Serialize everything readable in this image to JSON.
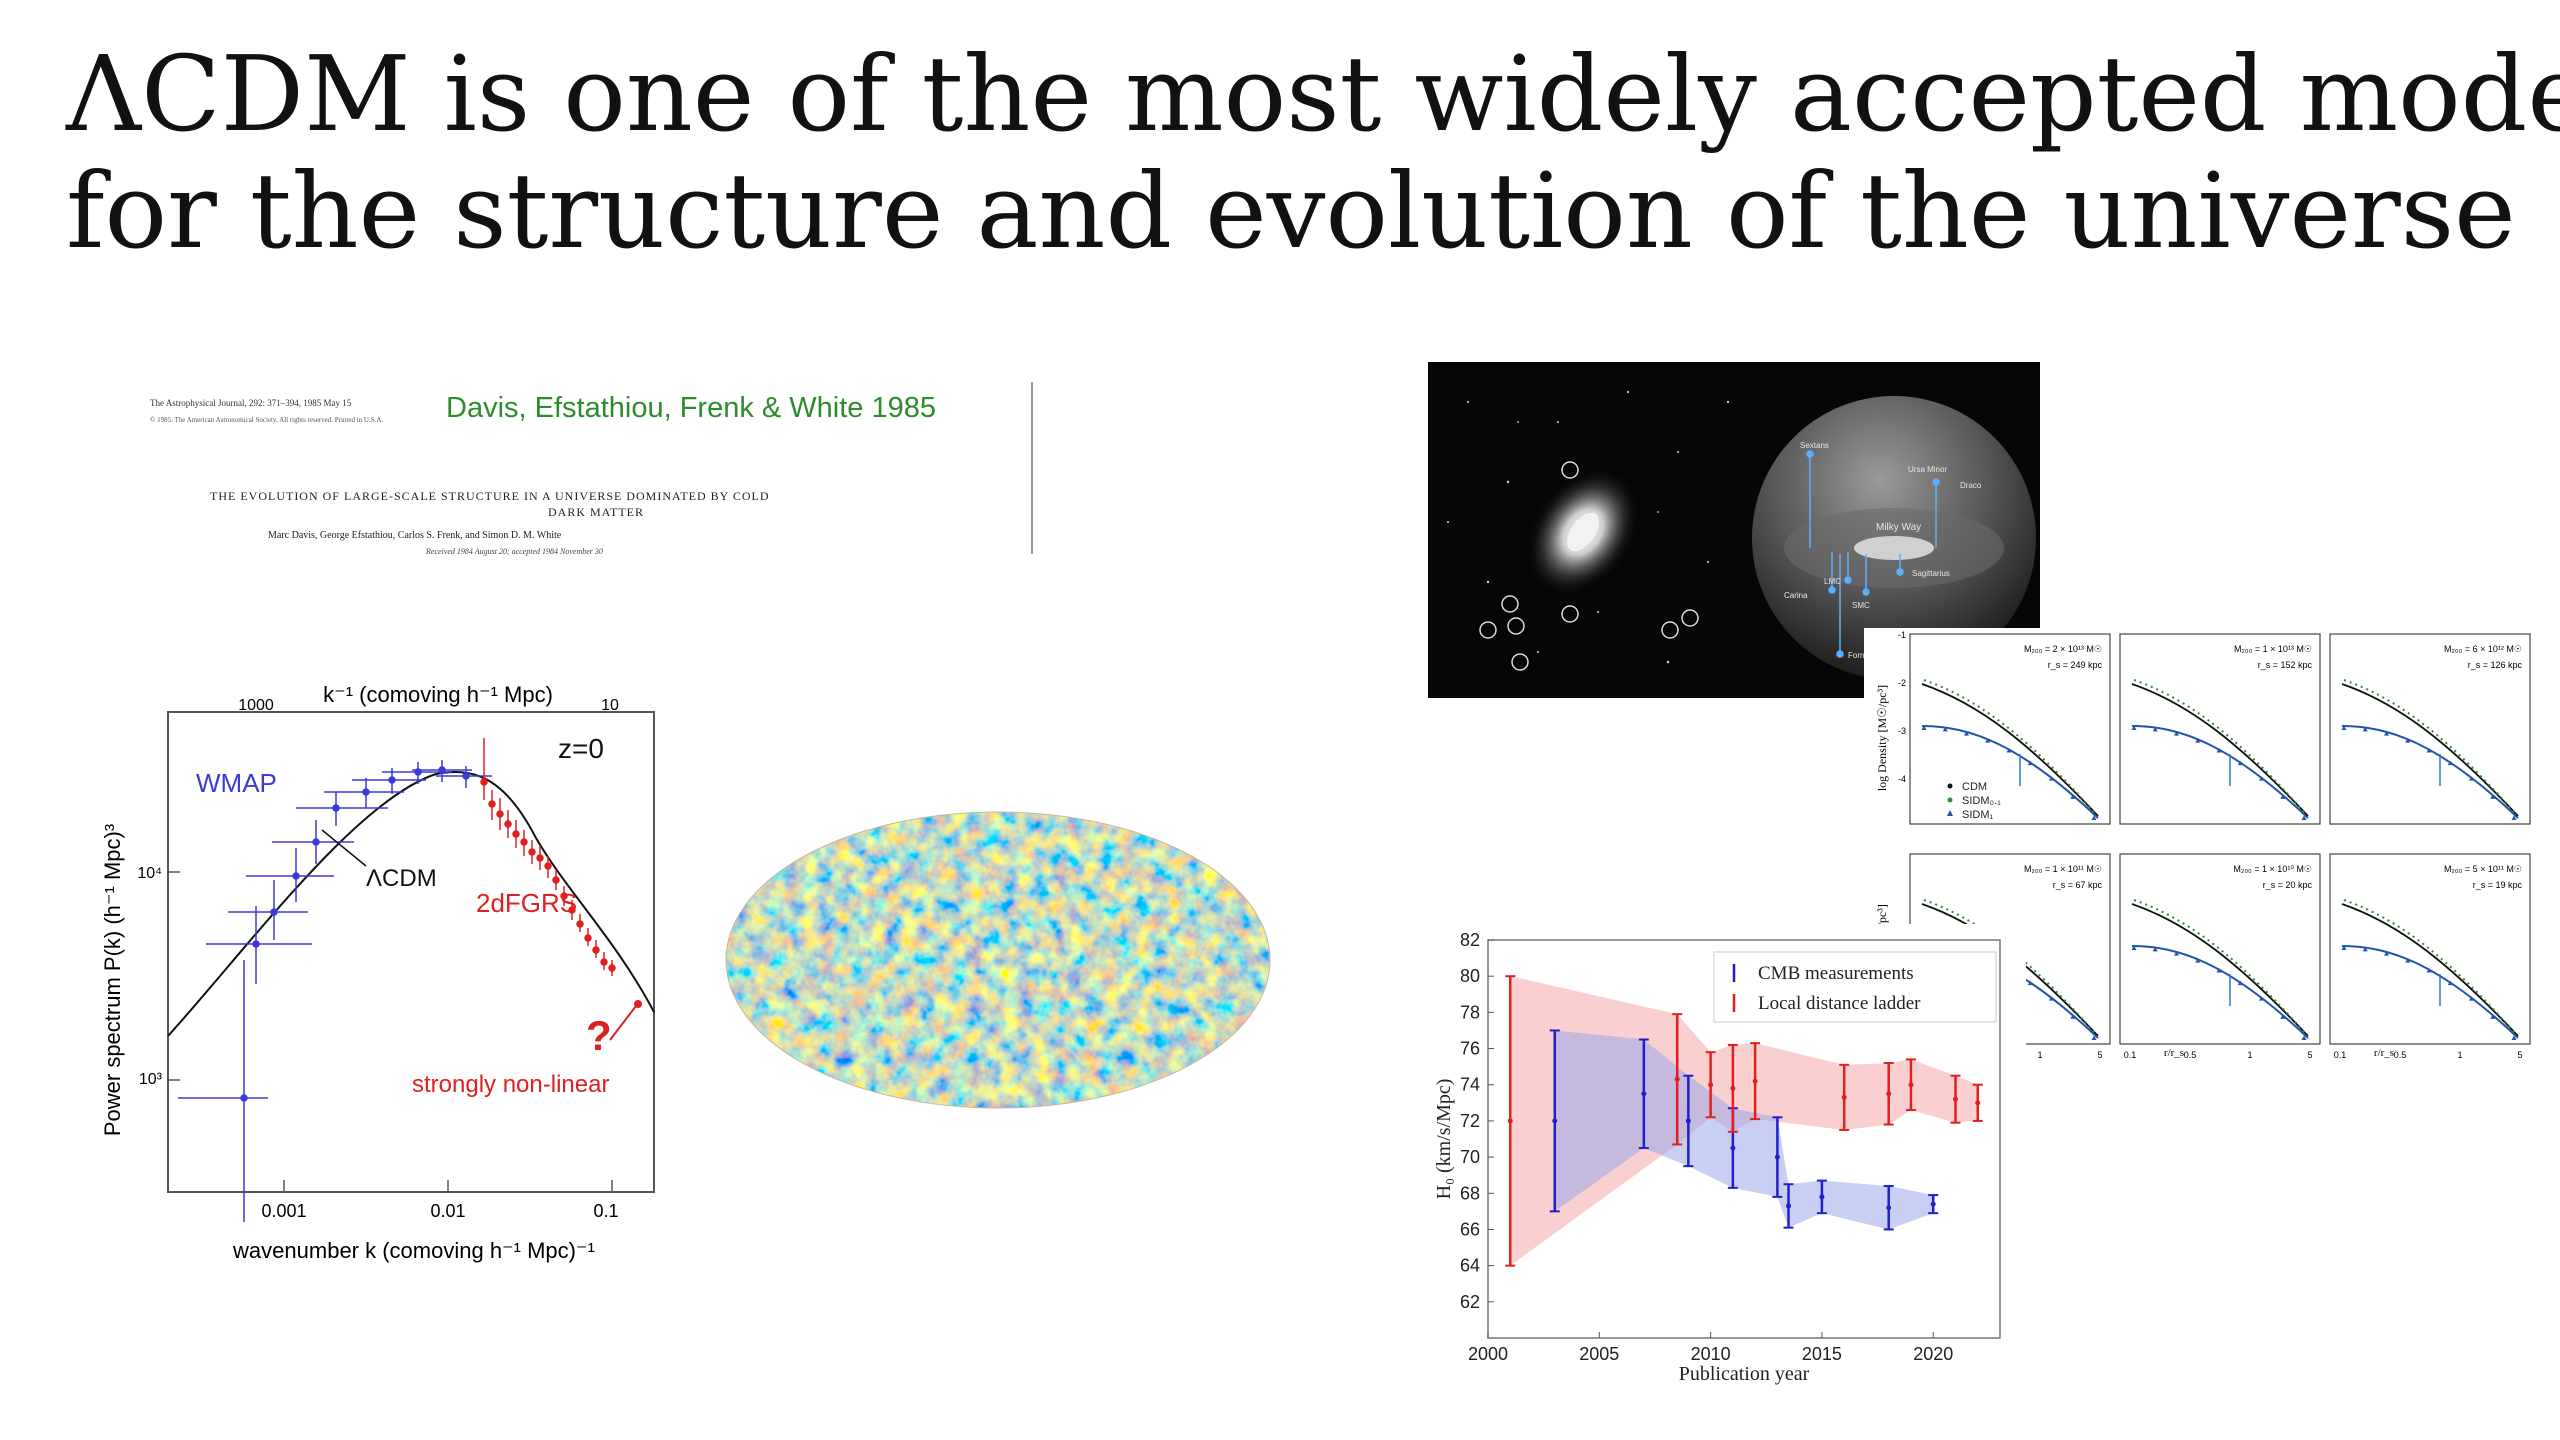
{
  "slide": {
    "title_line1": "ΛCDM is one of the most widely accepted model",
    "title_line2": "for the structure and evolution of the universe"
  },
  "paper_clip": {
    "journal": "The Astrophysical Journal, 292: 371–394, 1985 May 15",
    "copyright": "© 1985. The American Astronomical Society. All rights reserved. Printed in U.S.A.",
    "citation": "Davis, Efstathiou, Frenk & White 1985",
    "title_line1": "THE EVOLUTION OF LARGE-SCALE STRUCTURE IN A UNIVERSE DOMINATED BY COLD",
    "title_line2": "DARK MATTER",
    "authors": "Marc Davis, George Efstathiou, Carlos S. Frenk, and Simon D. M. White",
    "received": "Received 1984 August 20; accepted 1984 November 30",
    "citation_color": "#2e8b2e"
  },
  "power_spectrum": {
    "top_axis_label": "k⁻¹ (comoving h⁻¹ Mpc)",
    "top_ticks": [
      "1000",
      "10"
    ],
    "xlabel": "wavenumber k (comoving h⁻¹ Mpc)⁻¹",
    "ylabel": "Power spectrum P(k) (h⁻¹ Mpc)³",
    "x_ticks": [
      "0.001",
      "0.01",
      "0.1"
    ],
    "y_ticks": [
      "10⁴",
      "10³"
    ],
    "z_label": "z=0",
    "wmap_label": "WMAP",
    "lcdm_label": "ΛCDM",
    "dfgrs_label": "2dFGRS",
    "question_mark": "?",
    "nonlinear_label": "strongly non-linear",
    "wmap_color": "#3b3bd6",
    "sdss_color": "#e02020"
  },
  "cmb_map": {
    "name": "planck-cmb-map"
  },
  "milky_way": {
    "labels": [
      "Sextans",
      "Ursa Minor",
      "Draco",
      "Milky Way",
      "Carina",
      "LMC",
      "SMC",
      "Sagittarius",
      "Fornax"
    ]
  },
  "density_profiles": {
    "panels_top": [
      {
        "mass": "M₂₀₀ = 2 × 10¹³ M☉",
        "rs": "r_s = 249 kpc"
      },
      {
        "mass": "M₂₀₀ = 1 × 10¹³ M☉",
        "rs": "r_s = 152 kpc"
      },
      {
        "mass": "M₂₀₀ = 6 × 10¹² M☉",
        "rs": "r_s = 126 kpc"
      }
    ],
    "panels_bottom": [
      {
        "mass": "M₂₀₀ = 1 × 10¹¹ M☉",
        "rs": "r_s = 67 kpc"
      },
      {
        "mass": "M₂₀₀ = 1 × 10¹⁰ M☉",
        "rs": "r_s = 20 kpc"
      },
      {
        "mass": "M₂₀₀ = 5 × 10¹¹ M☉",
        "rs": "r_s = 19 kpc"
      }
    ],
    "ylabel_top": "log Density [M☉/pc³]",
    "ylabel_bottom": "[M☉/pc³]",
    "legend": [
      "CDM",
      "SIDM₀.₁",
      "SIDM₁"
    ],
    "xlabel": "r/r_s",
    "y_ticks_top": [
      "-1",
      "-2",
      "-3",
      "-4"
    ],
    "x_ticks": [
      "0.1",
      "0.5",
      "1",
      "5"
    ]
  },
  "hubble_chart": {
    "chart_data": {
      "type": "scatter",
      "xlabel": "Publication year",
      "ylabel": "H₀ (km/s/Mpc)",
      "xlim": [
        2000,
        2023
      ],
      "ylim": [
        60,
        82
      ],
      "x_ticks": [
        "2000",
        "2005",
        "2010",
        "2015",
        "2020"
      ],
      "y_ticks": [
        "62",
        "64",
        "66",
        "68",
        "70",
        "72",
        "74",
        "76",
        "78",
        "80",
        "82"
      ],
      "series": [
        {
          "name": "CMB measurements",
          "color": "#1f1fd0",
          "points": [
            {
              "x": 2003,
              "y": 72,
              "err": 5
            },
            {
              "x": 2007,
              "y": 73.5,
              "err": 3
            },
            {
              "x": 2009,
              "y": 72,
              "err": 2.5
            },
            {
              "x": 2011,
              "y": 70.5,
              "err": 2.2
            },
            {
              "x": 2013,
              "y": 70,
              "err": 2.2
            },
            {
              "x": 2013.5,
              "y": 67.3,
              "err": 1.2
            },
            {
              "x": 2015,
              "y": 67.8,
              "err": 0.9
            },
            {
              "x": 2018,
              "y": 67.2,
              "err": 1.2
            },
            {
              "x": 2020,
              "y": 67.4,
              "err": 0.5
            }
          ]
        },
        {
          "name": "Local distance ladder",
          "color": "#e02020",
          "points": [
            {
              "x": 2001,
              "y": 72,
              "err": 8
            },
            {
              "x": 2008.5,
              "y": 74.3,
              "err": 3.6
            },
            {
              "x": 2010,
              "y": 74,
              "err": 1.8
            },
            {
              "x": 2011,
              "y": 73.8,
              "err": 2.4
            },
            {
              "x": 2012,
              "y": 74.2,
              "err": 2.1
            },
            {
              "x": 2016,
              "y": 73.3,
              "err": 1.8
            },
            {
              "x": 2018,
              "y": 73.5,
              "err": 1.7
            },
            {
              "x": 2019,
              "y": 74.0,
              "err": 1.4
            },
            {
              "x": 2021,
              "y": 73.2,
              "err": 1.3
            },
            {
              "x": 2022,
              "y": 73.0,
              "err": 1.0
            }
          ]
        }
      ],
      "grid": false,
      "legend": "top-right"
    }
  }
}
